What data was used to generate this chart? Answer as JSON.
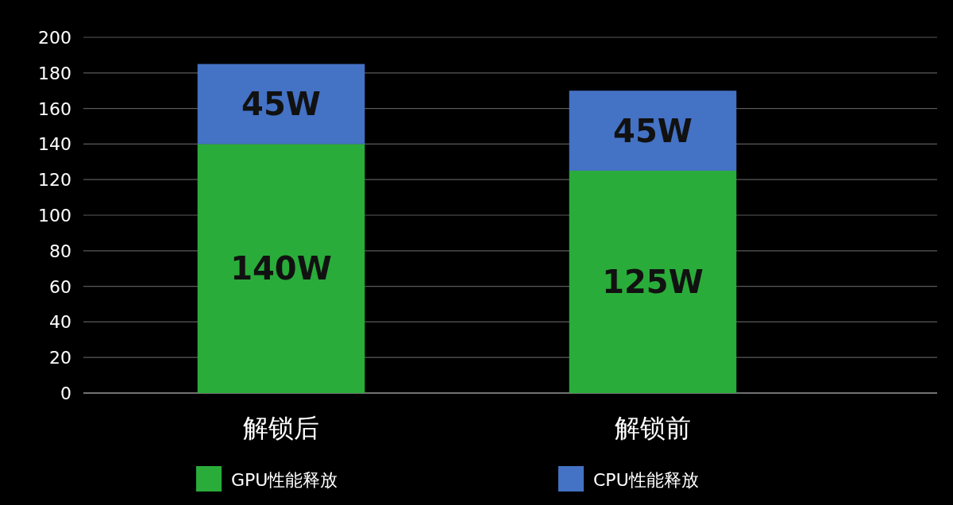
{
  "chart_data": {
    "type": "bar",
    "stacked": true,
    "categories": [
      "解锁后",
      "解锁前"
    ],
    "series": [
      {
        "name": "GPU性能释放",
        "color": "#2aac3a",
        "values": [
          140,
          125
        ],
        "value_labels": [
          "140W",
          "125W"
        ]
      },
      {
        "name": "CPU性能释放",
        "color": "#4472c4",
        "values": [
          45,
          45
        ],
        "value_labels": [
          "45W",
          "45W"
        ]
      }
    ],
    "ylim": [
      0,
      200
    ],
    "yticks": [
      0,
      20,
      40,
      60,
      80,
      100,
      120,
      140,
      160,
      180,
      200
    ],
    "grid": "y",
    "legend": "bottom"
  }
}
